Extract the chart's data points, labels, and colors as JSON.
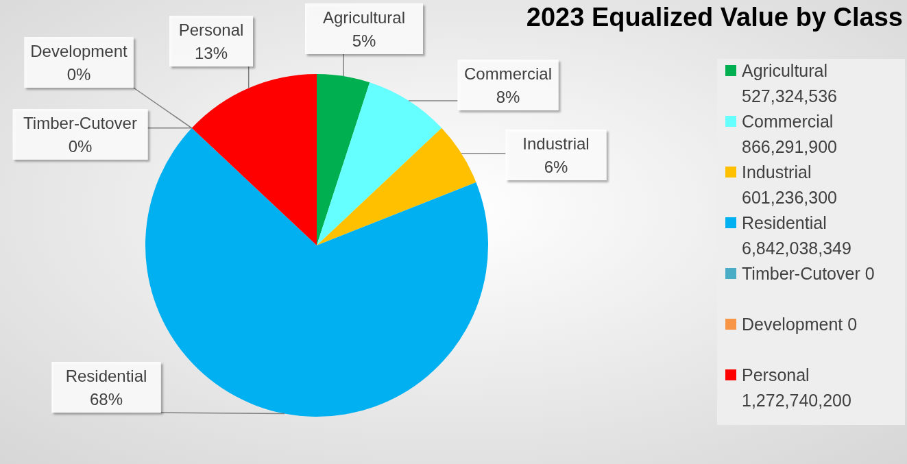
{
  "chart_data": {
    "type": "pie",
    "title": "2023 Equalized Value by Class",
    "categories": [
      "Agricultural",
      "Commercial",
      "Industrial",
      "Residential",
      "Timber-Cutover",
      "Development",
      "Personal"
    ],
    "values": [
      5,
      8,
      6,
      68,
      0,
      0,
      13
    ],
    "colors": [
      "#00b050",
      "#66ffff",
      "#ffc000",
      "#00b0f0",
      "#4bacc6",
      "#f79646",
      "#ff0000"
    ],
    "value_labels": [
      "5%",
      "8%",
      "6%",
      "68%",
      "0%",
      "0%",
      "13%"
    ],
    "annotations": [
      "527,324,536",
      "866,291,900",
      "601,236,300",
      "6,842,038,349",
      "0",
      "0",
      "1,272,740,200"
    ],
    "legend": "right"
  }
}
